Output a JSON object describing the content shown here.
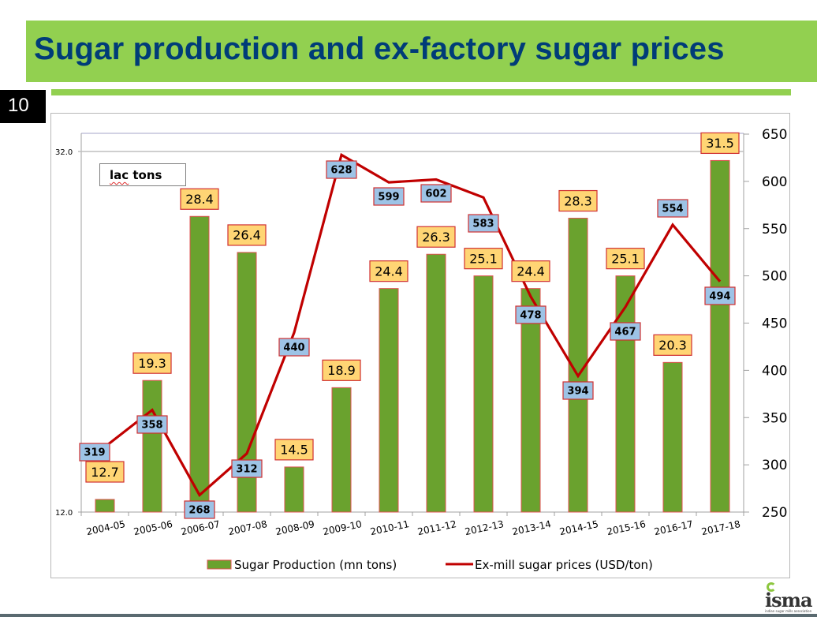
{
  "slide": {
    "title": "Sugar production and ex-factory sugar prices",
    "number": "10",
    "unit_note_word": "lac",
    "unit_note_rest": " tons",
    "logo_text": "isma",
    "logo_tagline": "indian sugar mills association",
    "colors": {
      "title_bar": "#92d050",
      "title_text": "#003c78",
      "bar_fill": "#6aa22e",
      "bar_border": "#e05050",
      "line": "#c00000",
      "bar_label_bg": "#ffd574",
      "line_label_bg": "#9dc3e6",
      "label_border": "#d03030"
    }
  },
  "chart_data": {
    "type": "bar+line",
    "title": "Sugar production and ex-factory sugar prices",
    "categories": [
      "2004-05",
      "2005-06",
      "2006-07",
      "2007-08",
      "2008-09",
      "2009-10",
      "2010-11",
      "2011-12",
      "2012-13",
      "2013-14",
      "2014-15",
      "2015-16",
      "2016-17",
      "2017-18"
    ],
    "series": [
      {
        "name": "Sugar Production (mn tons)",
        "type": "bar",
        "axis": "left",
        "values": [
          12.7,
          19.3,
          28.4,
          26.4,
          14.5,
          18.9,
          24.4,
          26.3,
          25.1,
          24.4,
          28.3,
          25.1,
          20.3,
          31.5
        ],
        "labels": [
          "12.7",
          "19.3",
          "28.4",
          "26.4",
          "14.5",
          "18.9",
          "24.4",
          "26.3",
          "25.1",
          "24.4",
          "28.3",
          "25.1",
          "20.3",
          "31.5"
        ]
      },
      {
        "name": "Ex-mill sugar prices (USD/ton)",
        "type": "line",
        "axis": "right",
        "values": [
          319,
          358,
          268,
          312,
          440,
          628,
          599,
          602,
          583,
          478,
          394,
          467,
          554,
          494
        ],
        "labels": [
          "319",
          "358",
          "268",
          "312",
          "440",
          "628",
          "599",
          "602",
          "583",
          "478",
          "394",
          "467",
          "554",
          "494"
        ]
      }
    ],
    "left_axis": {
      "ylim": [
        12.0,
        32.0
      ],
      "ticks": [
        "12.0",
        "32.0"
      ]
    },
    "right_axis": {
      "ylim": [
        250,
        650
      ],
      "ticks": [
        "250",
        "300",
        "350",
        "400",
        "450",
        "500",
        "550",
        "600",
        "650"
      ]
    },
    "annotation": "lac tons",
    "legend": {
      "position": "bottom",
      "entries": [
        "Sugar Production (mn tons)",
        "Ex-mill sugar prices (USD/ton)"
      ]
    },
    "grid": false
  }
}
